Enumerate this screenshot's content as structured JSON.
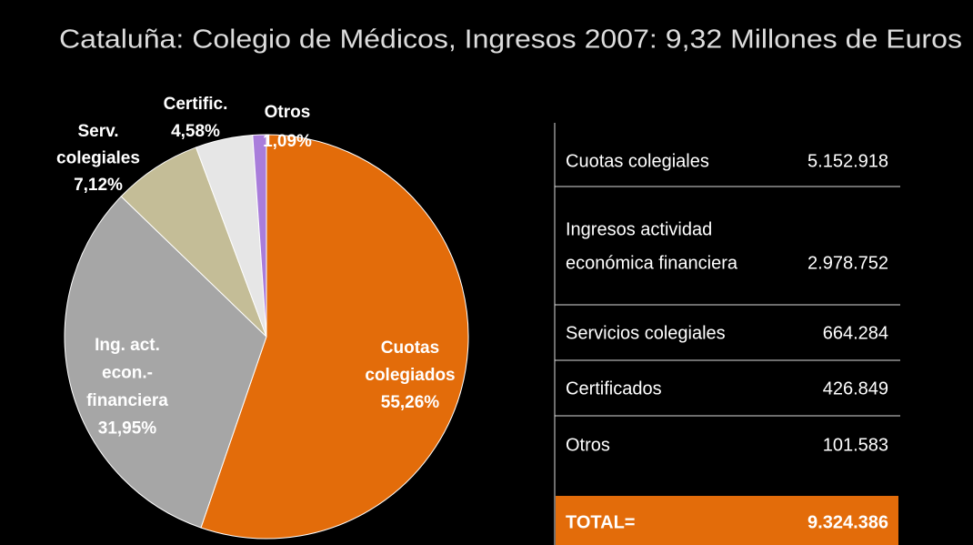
{
  "chart_data": {
    "type": "pie",
    "title": "Cataluña: Colegio de Médicos, Ingresos 2007: 9,32 Millones de Euros",
    "categories": [
      [
        "Cuotas",
        "colegiados"
      ],
      [
        "Ing. act.",
        "econ.-",
        "financiera"
      ],
      [
        "Serv.",
        "colegiales"
      ],
      [
        "Certific."
      ],
      [
        "Otros"
      ]
    ],
    "values": [
      55.26,
      31.95,
      7.12,
      4.58,
      1.09
    ],
    "value_labels": [
      "55,26%",
      "31,95%",
      "7,12%",
      "4,58%",
      "1,09%"
    ],
    "colors": [
      "#e36c0a",
      "#a6a6a6",
      "#c4bd97",
      "#e6e6e6",
      "#a97ddb"
    ]
  },
  "table": {
    "rows": [
      [
        [
          "Cuotas colegiales"
        ],
        "5.152.918"
      ],
      [
        [
          "Ingresos actividad",
          "económica financiera"
        ],
        "2.978.752"
      ],
      [
        [
          "Servicios colegiales"
        ],
        "664.284"
      ],
      [
        [
          "Certificados"
        ],
        "426.849"
      ],
      [
        [
          "Otros"
        ],
        "101.583"
      ]
    ],
    "total": [
      "TOTAL=",
      "9.324.386"
    ]
  }
}
